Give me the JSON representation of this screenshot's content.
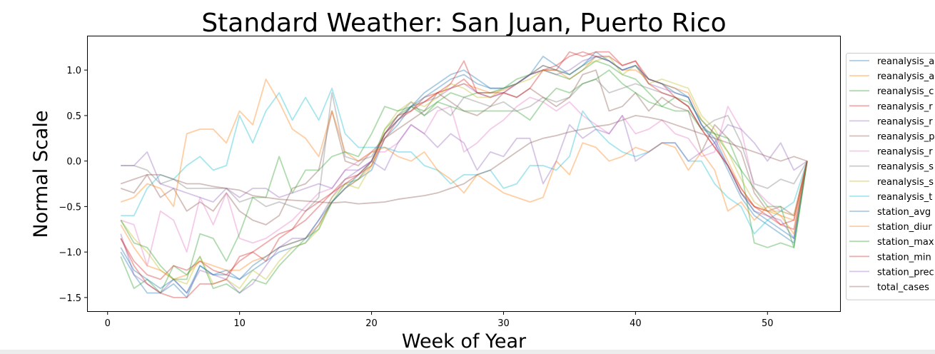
{
  "chart_data": {
    "type": "line",
    "title": "Standard Weather: San Juan, Puerto Rico",
    "xlabel": "Week of Year",
    "ylabel": "Normal Scale",
    "xlim": [
      -1.5,
      55.5
    ],
    "ylim": [
      -1.65,
      1.37
    ],
    "xticks": [
      0,
      10,
      20,
      30,
      40,
      50
    ],
    "yticks": [
      -1.5,
      -1.0,
      -0.5,
      0.0,
      0.5,
      1.0
    ],
    "ytick_labels": [
      "−1.5",
      "−1.0",
      "−0.5",
      "0.0",
      "0.5",
      "1.0"
    ],
    "legend_position": "right, clipped",
    "x": [
      1,
      2,
      3,
      4,
      5,
      6,
      7,
      8,
      9,
      10,
      11,
      12,
      13,
      14,
      15,
      16,
      17,
      18,
      19,
      20,
      21,
      22,
      23,
      24,
      25,
      26,
      27,
      28,
      29,
      30,
      31,
      32,
      33,
      34,
      35,
      36,
      37,
      38,
      39,
      40,
      41,
      42,
      43,
      44,
      45,
      46,
      47,
      48,
      49,
      50,
      51,
      52,
      53
    ],
    "series": [
      {
        "name": "reanalysis_a",
        "color": "#1f77b4",
        "values": [
          -1.0,
          -1.25,
          -1.45,
          -1.45,
          -1.35,
          -1.5,
          -1.15,
          -1.25,
          -1.25,
          -1.3,
          -1.2,
          -1.1,
          -1.0,
          -0.95,
          -0.9,
          -0.7,
          -0.45,
          -0.3,
          -0.2,
          -0.1,
          0.25,
          0.4,
          0.6,
          0.75,
          0.85,
          0.95,
          1.0,
          0.9,
          0.8,
          0.8,
          0.85,
          0.95,
          1.15,
          1.05,
          0.95,
          1.05,
          1.2,
          1.1,
          1.0,
          1.05,
          0.9,
          0.85,
          0.8,
          0.7,
          0.4,
          0.2,
          -0.1,
          -0.4,
          -0.6,
          -0.7,
          -0.8,
          -0.9,
          0.0
        ]
      },
      {
        "name": "reanalysis_a",
        "color": "#ff7f0e",
        "values": [
          -0.7,
          -0.95,
          -1.15,
          -1.2,
          -1.3,
          -1.25,
          -1.1,
          -1.15,
          -1.2,
          -1.2,
          -1.1,
          -1.05,
          -0.95,
          -0.9,
          -0.85,
          -0.7,
          -0.45,
          -0.3,
          -0.2,
          -0.05,
          0.3,
          0.45,
          0.6,
          0.65,
          0.75,
          0.8,
          0.85,
          0.8,
          0.75,
          0.78,
          0.85,
          0.95,
          1.05,
          1.0,
          0.9,
          1.0,
          1.15,
          1.1,
          1.0,
          1.0,
          0.9,
          0.85,
          0.8,
          0.75,
          0.45,
          0.3,
          0.0,
          -0.3,
          -0.5,
          -0.55,
          -0.6,
          -0.65,
          0.0
        ]
      },
      {
        "name": "reanalysis_c",
        "color": "#2ca02c",
        "values": [
          -1.05,
          -1.4,
          -1.3,
          -1.45,
          -1.15,
          -1.25,
          -1.05,
          -1.4,
          -1.35,
          -1.45,
          -1.3,
          -1.35,
          -1.15,
          -1.0,
          -0.85,
          -0.75,
          -0.45,
          -0.25,
          -0.2,
          0.0,
          0.35,
          0.5,
          0.6,
          0.55,
          0.65,
          0.75,
          0.7,
          0.75,
          0.75,
          0.8,
          0.9,
          0.95,
          1.0,
          0.95,
          0.9,
          1.0,
          1.1,
          1.05,
          0.95,
          0.9,
          0.75,
          0.6,
          0.7,
          0.65,
          0.45,
          0.3,
          0.1,
          -0.1,
          -0.9,
          -0.95,
          -0.9,
          -0.95,
          0.0
        ]
      },
      {
        "name": "reanalysis_r",
        "color": "#d62728",
        "values": [
          -0.85,
          -1.1,
          -1.25,
          -1.3,
          -1.15,
          -1.2,
          -1.1,
          -1.2,
          -1.25,
          -1.1,
          -1.0,
          -1.1,
          -0.85,
          -0.75,
          -0.65,
          -0.5,
          -0.35,
          -0.2,
          -0.15,
          -0.05,
          0.25,
          0.45,
          0.55,
          0.7,
          0.75,
          0.8,
          0.9,
          0.75,
          0.7,
          0.75,
          0.85,
          0.95,
          1.0,
          1.05,
          1.15,
          1.2,
          1.15,
          1.15,
          1.05,
          1.1,
          0.9,
          0.85,
          0.7,
          0.6,
          0.35,
          0.15,
          -0.05,
          -0.3,
          -0.5,
          -0.6,
          -0.7,
          -0.75,
          0.0
        ]
      },
      {
        "name": "reanalysis_r",
        "color": "#9467bd",
        "values": [
          -0.8,
          -1.25,
          -1.35,
          -1.45,
          -1.3,
          -1.45,
          -1.2,
          -1.25,
          -1.3,
          -1.45,
          -1.35,
          -1.15,
          -0.95,
          -0.85,
          -0.85,
          -0.65,
          -0.4,
          -0.2,
          -0.1,
          0.0,
          0.3,
          0.45,
          0.6,
          0.65,
          0.7,
          0.8,
          0.85,
          0.75,
          0.7,
          0.75,
          0.85,
          0.95,
          1.0,
          0.95,
          1.0,
          1.1,
          1.15,
          1.1,
          1.0,
          1.05,
          0.85,
          0.8,
          0.75,
          0.7,
          0.4,
          0.2,
          -0.05,
          -0.35,
          -0.55,
          -0.6,
          -0.65,
          -0.85,
          0.0
        ]
      },
      {
        "name": "reanalysis_p",
        "color": "#8c564b",
        "values": [
          -0.3,
          -0.35,
          -0.15,
          -0.4,
          -0.3,
          -0.55,
          -0.45,
          -0.55,
          -0.35,
          -0.55,
          -0.65,
          -0.7,
          -0.6,
          -0.3,
          -0.25,
          -0.1,
          0.55,
          0.0,
          -0.05,
          0.1,
          0.25,
          0.35,
          0.45,
          0.55,
          0.75,
          0.65,
          0.55,
          0.5,
          0.6,
          0.75,
          0.7,
          0.8,
          0.7,
          0.6,
          0.7,
          0.95,
          1.0,
          0.55,
          0.6,
          0.75,
          0.55,
          0.7,
          0.6,
          0.55,
          0.1,
          0.4,
          0.25,
          0.1,
          -0.35,
          -0.55,
          -0.5,
          -0.6,
          0.0
        ]
      },
      {
        "name": "reanalysis_r",
        "color": "#e377c2",
        "values": [
          -0.65,
          -0.7,
          -1.15,
          -0.55,
          -0.65,
          -1.0,
          -0.4,
          -0.7,
          -0.35,
          -0.85,
          -0.9,
          -0.85,
          -0.75,
          -0.65,
          -0.5,
          -0.35,
          -0.3,
          -0.1,
          0.0,
          0.1,
          0.1,
          0.2,
          0.4,
          0.3,
          0.55,
          0.6,
          0.1,
          0.2,
          0.35,
          0.45,
          0.6,
          0.7,
          0.65,
          0.55,
          0.65,
          0.5,
          0.4,
          0.3,
          0.5,
          0.3,
          0.35,
          0.45,
          0.3,
          0.25,
          0.05,
          0.1,
          0.6,
          0.35,
          -0.3,
          -0.45,
          -0.55,
          -0.6,
          0.0
        ]
      },
      {
        "name": "reanalysis_s",
        "color": "#7f7f7f",
        "values": [
          -0.05,
          -0.05,
          -0.1,
          -0.25,
          -0.2,
          -0.3,
          -0.3,
          -0.3,
          -0.3,
          -0.45,
          -0.4,
          -0.5,
          -0.45,
          -0.5,
          -0.55,
          -0.4,
          0.75,
          0.05,
          0.0,
          0.05,
          0.3,
          0.5,
          0.65,
          0.5,
          0.6,
          0.5,
          0.7,
          0.65,
          0.6,
          0.65,
          0.55,
          0.6,
          0.7,
          0.65,
          0.7,
          0.85,
          0.9,
          0.75,
          0.8,
          0.85,
          0.8,
          0.75,
          0.7,
          0.6,
          0.35,
          0.45,
          0.5,
          0.2,
          -0.25,
          -0.3,
          -0.2,
          -0.25,
          0.0
        ]
      },
      {
        "name": "reanalysis_s",
        "color": "#bcbd22",
        "values": [
          -0.65,
          -0.85,
          -1.0,
          -1.2,
          -1.3,
          -1.35,
          -1.05,
          -1.35,
          -1.3,
          -1.4,
          -1.2,
          -1.3,
          -1.1,
          -0.95,
          -0.9,
          -0.75,
          -0.4,
          -0.25,
          -0.3,
          -0.05,
          0.35,
          0.55,
          0.65,
          0.6,
          0.7,
          0.85,
          0.8,
          0.7,
          0.7,
          0.8,
          0.85,
          0.9,
          1.0,
          1.0,
          0.95,
          1.05,
          1.1,
          1.15,
          0.95,
          1.05,
          0.85,
          0.9,
          0.85,
          0.8,
          0.5,
          0.35,
          0.1,
          -0.2,
          -0.45,
          -0.55,
          -0.55,
          -0.6,
          0.0
        ]
      },
      {
        "name": "reanalysis_t",
        "color": "#17becf",
        "values": [
          -0.6,
          -0.6,
          -0.3,
          -0.15,
          -0.2,
          -0.05,
          0.05,
          -0.1,
          -0.05,
          0.5,
          0.2,
          0.55,
          0.75,
          0.45,
          0.7,
          0.45,
          0.8,
          0.3,
          0.15,
          0.15,
          0.15,
          0.1,
          0.1,
          -0.05,
          -0.1,
          -0.25,
          -0.15,
          -0.15,
          -0.1,
          -0.3,
          -0.25,
          -0.05,
          -0.05,
          -0.1,
          0.05,
          0.55,
          0.35,
          0.2,
          0.1,
          0.05,
          0.1,
          0.2,
          0.2,
          0.0,
          0.0,
          -0.25,
          -0.4,
          -0.5,
          -0.8,
          -0.65,
          -0.55,
          -0.45,
          0.0
        ]
      },
      {
        "name": "station_avg",
        "color": "#1f77b4",
        "values": [
          -0.95,
          -1.2,
          -1.3,
          -1.4,
          -1.3,
          -1.45,
          -1.15,
          -1.25,
          -1.2,
          -1.3,
          -1.15,
          -1.05,
          -0.95,
          -0.9,
          -0.85,
          -0.65,
          -0.45,
          -0.3,
          -0.15,
          0.0,
          0.3,
          0.45,
          0.6,
          0.7,
          0.8,
          0.9,
          0.95,
          0.85,
          0.8,
          0.8,
          0.85,
          0.95,
          1.05,
          1.0,
          0.95,
          1.05,
          1.15,
          1.1,
          1.0,
          1.05,
          0.9,
          0.85,
          0.75,
          0.7,
          0.4,
          0.25,
          -0.05,
          -0.35,
          -0.55,
          -0.65,
          -0.75,
          -0.85,
          0.0
        ]
      },
      {
        "name": "station_diur",
        "color": "#ff7f0e",
        "values": [
          -0.45,
          -0.4,
          -0.25,
          -0.3,
          -0.5,
          0.3,
          0.35,
          0.35,
          0.2,
          0.55,
          0.4,
          0.9,
          0.65,
          0.35,
          0.25,
          0.05,
          0.55,
          0.1,
          0.0,
          0.1,
          0.15,
          0.05,
          0.0,
          0.1,
          -0.1,
          -0.2,
          -0.35,
          -0.15,
          -0.25,
          -0.35,
          -0.4,
          -0.45,
          -0.4,
          0.0,
          -0.15,
          0.2,
          0.15,
          0.0,
          0.05,
          0.15,
          0.1,
          0.2,
          0.15,
          -0.1,
          0.1,
          -0.1,
          -0.55,
          -0.45,
          -0.65,
          -0.5,
          -0.6,
          -0.8,
          0.0
        ]
      },
      {
        "name": "station_max",
        "color": "#2ca02c",
        "values": [
          -0.65,
          -0.9,
          -0.95,
          -1.15,
          -1.3,
          -1.3,
          -0.8,
          -0.85,
          -1.1,
          -0.8,
          -0.4,
          -0.4,
          0.05,
          -0.35,
          -0.1,
          -0.1,
          0.05,
          0.1,
          0.05,
          0.3,
          0.6,
          0.55,
          0.6,
          0.5,
          0.65,
          0.6,
          0.55,
          0.55,
          0.55,
          0.55,
          0.55,
          0.45,
          0.65,
          0.8,
          0.75,
          0.85,
          0.9,
          1.0,
          0.85,
          0.75,
          0.65,
          0.6,
          0.55,
          0.55,
          0.35,
          0.3,
          0.25,
          -0.1,
          -0.3,
          -0.5,
          -0.5,
          -0.95,
          0.0
        ]
      },
      {
        "name": "station_min",
        "color": "#d62728",
        "values": [
          -0.85,
          -1.15,
          -1.35,
          -1.45,
          -1.5,
          -1.5,
          -1.35,
          -1.35,
          -1.3,
          -1.05,
          -1.0,
          -0.9,
          -0.8,
          -0.75,
          -0.55,
          -0.45,
          -0.35,
          -0.25,
          -0.15,
          0.0,
          0.3,
          0.5,
          0.55,
          0.65,
          0.75,
          0.85,
          1.1,
          0.75,
          0.75,
          0.75,
          0.7,
          0.8,
          1.0,
          1.0,
          1.2,
          1.15,
          1.2,
          1.2,
          1.05,
          1.1,
          0.85,
          0.75,
          0.7,
          0.6,
          0.35,
          0.15,
          -0.05,
          -0.35,
          -0.5,
          -0.55,
          -0.7,
          -0.65,
          0.0
        ]
      },
      {
        "name": "station_prec",
        "color": "#9467bd",
        "values": [
          -0.05,
          -0.05,
          0.1,
          -0.25,
          -0.3,
          -0.35,
          -0.4,
          -0.45,
          -0.3,
          -0.4,
          -0.3,
          -0.3,
          -0.4,
          -0.35,
          -0.3,
          -0.25,
          -0.3,
          -0.1,
          -0.1,
          0.0,
          -0.1,
          0.2,
          0.4,
          0.3,
          0.15,
          0.3,
          0.2,
          -0.1,
          0.1,
          0.05,
          0.25,
          0.25,
          -0.25,
          0.0,
          0.4,
          0.25,
          0.35,
          0.3,
          0.5,
          0.0,
          0.1,
          0.2,
          0.2,
          0.0,
          0.1,
          0.2,
          0.4,
          0.35,
          0.2,
          0.0,
          0.2,
          -0.1,
          0.0
        ]
      },
      {
        "name": "total_cases",
        "color": "#8c564b",
        "values": [
          -0.25,
          -0.2,
          -0.15,
          -0.15,
          -0.2,
          -0.25,
          -0.25,
          -0.28,
          -0.3,
          -0.32,
          -0.38,
          -0.4,
          -0.42,
          -0.43,
          -0.44,
          -0.45,
          -0.46,
          -0.45,
          -0.47,
          -0.46,
          -0.45,
          -0.42,
          -0.4,
          -0.38,
          -0.35,
          -0.3,
          -0.25,
          -0.15,
          -0.1,
          0.0,
          0.1,
          0.2,
          0.25,
          0.28,
          0.32,
          0.35,
          0.38,
          0.4,
          0.45,
          0.5,
          0.48,
          0.45,
          0.4,
          0.35,
          0.3,
          0.25,
          0.2,
          0.15,
          0.1,
          0.05,
          0.0,
          0.05,
          0.0
        ]
      }
    ]
  }
}
